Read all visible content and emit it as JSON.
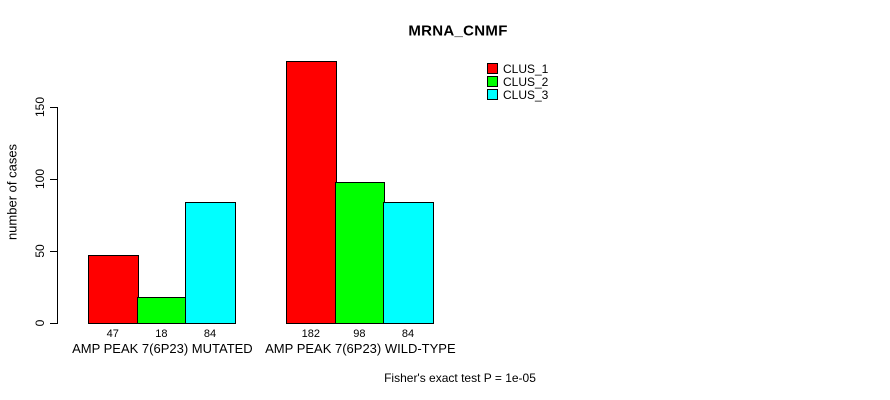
{
  "chart_data": {
    "type": "bar",
    "title": "MRNA_CNMF",
    "ylabel": "number of cases",
    "xlabel": "",
    "ylim": [
      0,
      150
    ],
    "yticks": [
      0,
      50,
      100,
      150
    ],
    "grid": false,
    "legend_position": "top-right",
    "categories": [
      "AMP PEAK 7(6P23) MUTATED",
      "AMP PEAK 7(6P23) WILD-TYPE"
    ],
    "series": [
      {
        "name": "CLUS_1",
        "color": "#FF0000",
        "values": [
          47,
          182
        ]
      },
      {
        "name": "CLUS_2",
        "color": "#00FF00",
        "values": [
          18,
          98
        ]
      },
      {
        "name": "CLUS_3",
        "color": "#00FFFF",
        "values": [
          84,
          84
        ]
      }
    ],
    "bar_value_labels": [
      [
        "47",
        "18",
        "84"
      ],
      [
        "182",
        "98",
        "84"
      ]
    ],
    "annotation": "Fisher's exact test P = 1e-05"
  },
  "colors": {
    "background": "#FFFFFF",
    "bar_border": "#000000",
    "axis": "#000000",
    "text": "#000000"
  }
}
